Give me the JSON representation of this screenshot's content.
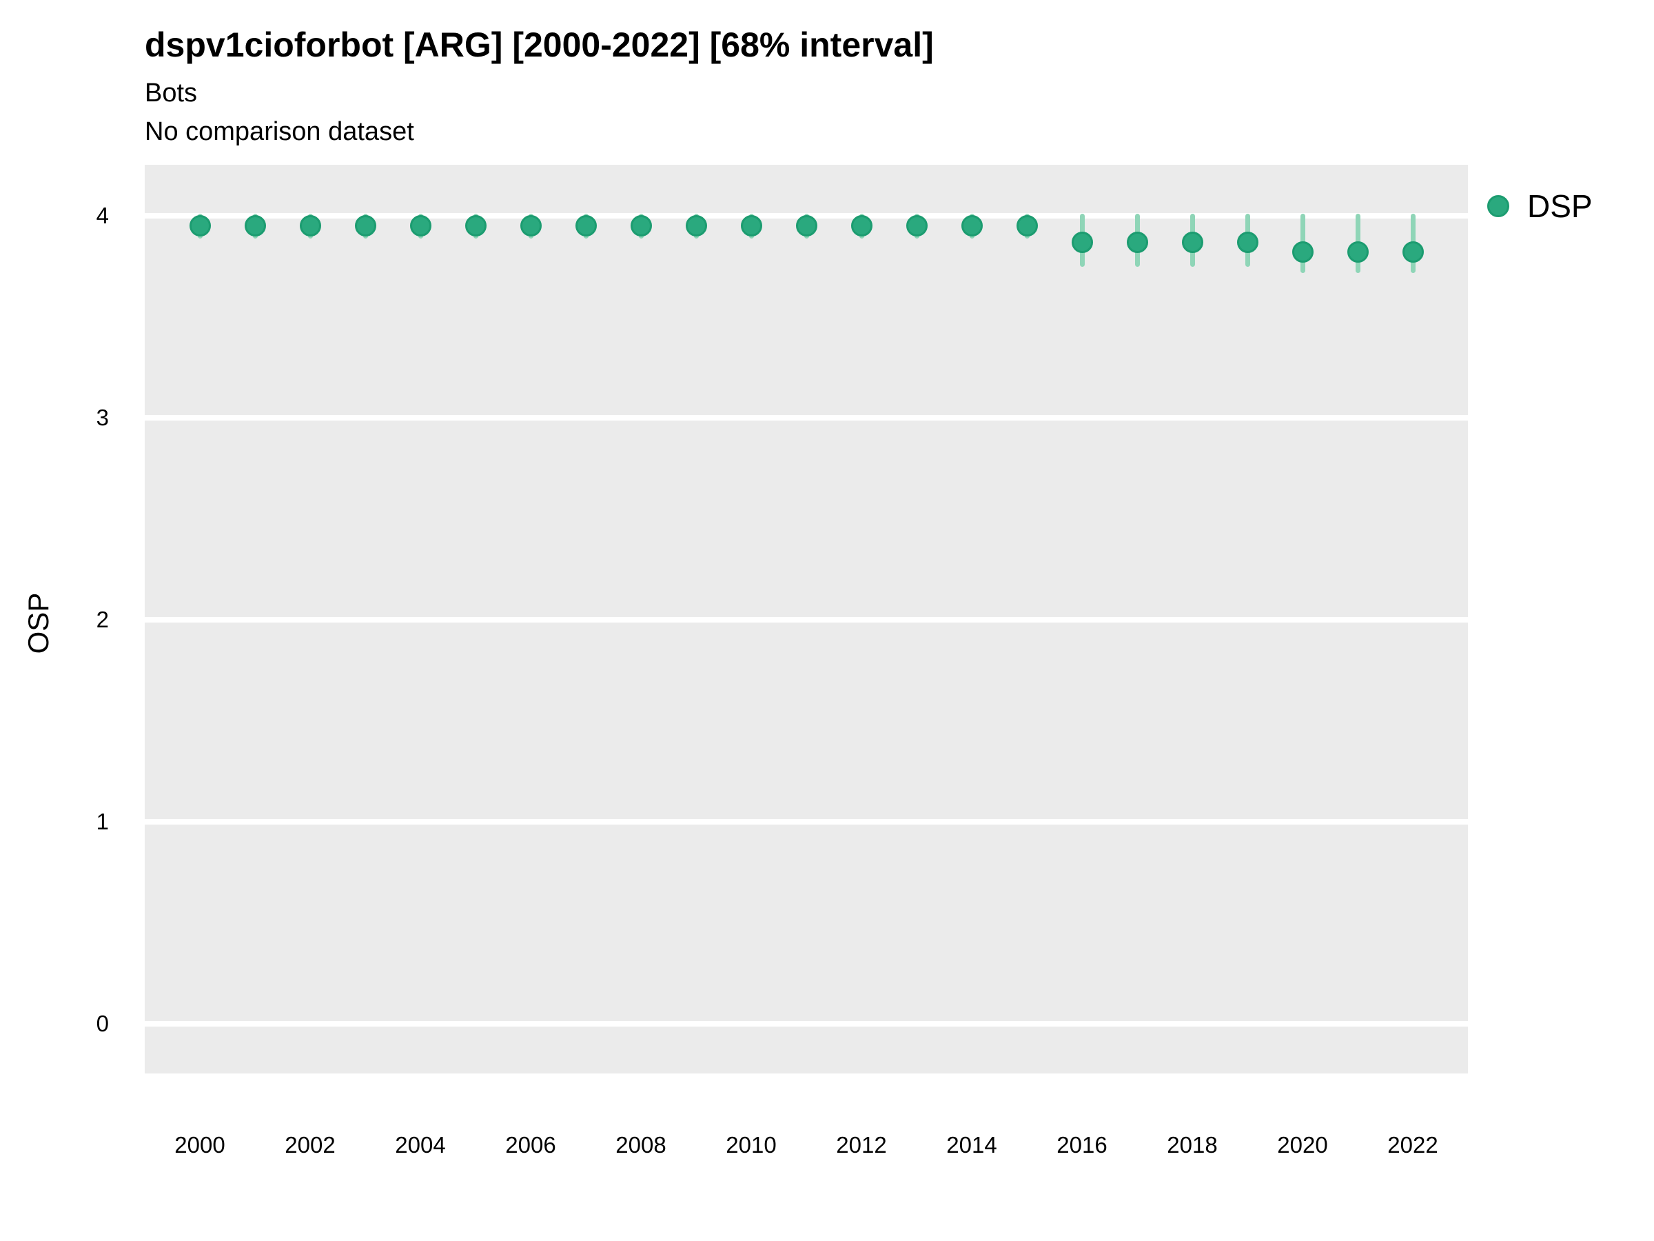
{
  "header": {
    "title": "dspv1cioforbot [ARG] [2000-2022] [68% interval]",
    "subtitle": "Bots",
    "note": "No comparison dataset"
  },
  "colors": {
    "panel_background": "#ebebeb",
    "gridline": "#ffffff",
    "page_background": "#ffffff",
    "point_fill": "#2aa97e",
    "point_stroke": "#1c9c70",
    "errorbar": "#8fd5b7",
    "text": "#000000"
  },
  "chart_data": {
    "type": "scatter",
    "title": "dspv1cioforbot [ARG] [2000-2022] [68% interval]",
    "subtitle": "Bots",
    "note": "No comparison dataset",
    "xlabel": "",
    "ylabel": "OSP",
    "interval": "68%",
    "grid": "horizontal-major-only",
    "legend_position": "right",
    "ylim": [
      -0.25,
      4.25
    ],
    "yticks": [
      0,
      1,
      2,
      3,
      4
    ],
    "xticks": [
      2000,
      2002,
      2004,
      2006,
      2008,
      2010,
      2012,
      2014,
      2016,
      2018,
      2020,
      2022
    ],
    "x": [
      2000,
      2001,
      2002,
      2003,
      2004,
      2005,
      2006,
      2007,
      2008,
      2009,
      2010,
      2011,
      2012,
      2013,
      2014,
      2015,
      2016,
      2017,
      2018,
      2019,
      2020,
      2021,
      2022
    ],
    "series": [
      {
        "name": "DSP",
        "values": [
          3.95,
          3.95,
          3.95,
          3.95,
          3.95,
          3.95,
          3.95,
          3.95,
          3.95,
          3.95,
          3.95,
          3.95,
          3.95,
          3.95,
          3.95,
          3.95,
          3.87,
          3.87,
          3.87,
          3.87,
          3.82,
          3.82,
          3.82
        ],
        "interval_low": [
          3.9,
          3.9,
          3.9,
          3.9,
          3.9,
          3.9,
          3.9,
          3.9,
          3.9,
          3.9,
          3.9,
          3.9,
          3.9,
          3.9,
          3.9,
          3.9,
          3.76,
          3.76,
          3.76,
          3.76,
          3.73,
          3.73,
          3.73
        ],
        "interval_high": [
          4.0,
          4.0,
          4.0,
          4.0,
          4.0,
          4.0,
          4.0,
          4.0,
          4.0,
          4.0,
          4.0,
          4.0,
          4.0,
          4.0,
          4.0,
          4.0,
          4.0,
          4.0,
          4.0,
          4.0,
          4.0,
          4.0,
          4.0
        ]
      }
    ]
  }
}
